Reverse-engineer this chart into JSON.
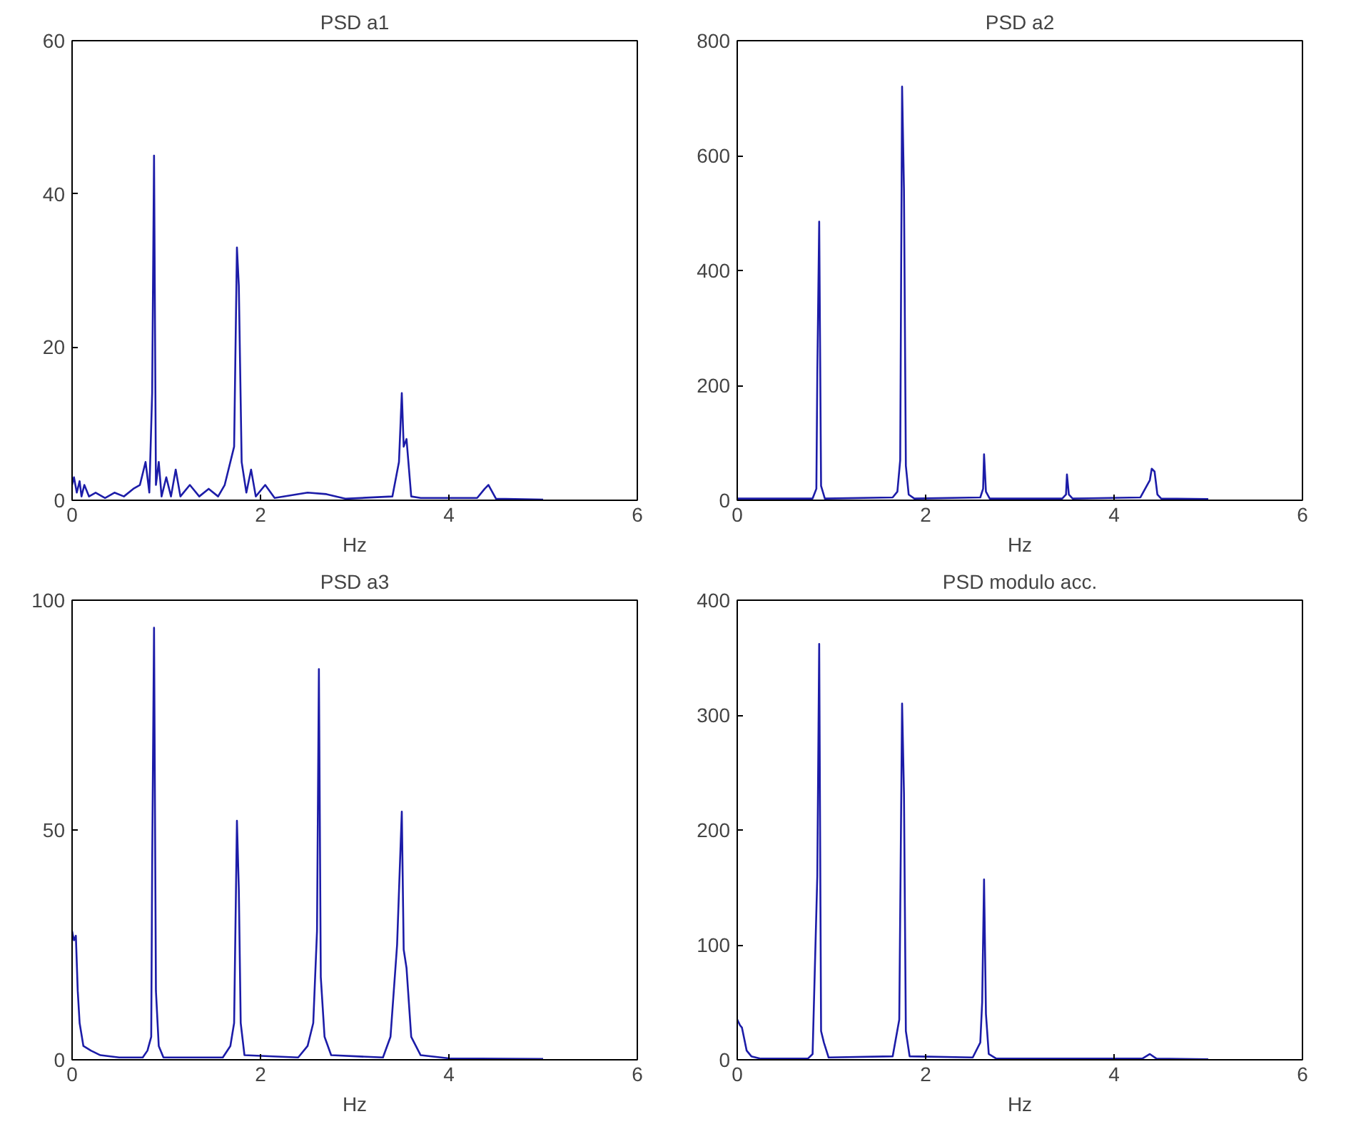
{
  "chart_data": [
    {
      "type": "line",
      "title": "PSD a1",
      "xlabel": "Hz",
      "color": "#1c1ca8",
      "xlim": [
        0,
        6
      ],
      "ylim": [
        0,
        60
      ],
      "xticks": [
        0,
        2,
        4,
        6
      ],
      "yticks": [
        0,
        20,
        40,
        60
      ],
      "x": [
        0,
        0.02,
        0.05,
        0.08,
        0.1,
        0.13,
        0.18,
        0.25,
        0.35,
        0.45,
        0.55,
        0.65,
        0.72,
        0.78,
        0.82,
        0.85,
        0.87,
        0.89,
        0.92,
        0.95,
        1.0,
        1.05,
        1.1,
        1.15,
        1.25,
        1.35,
        1.45,
        1.55,
        1.62,
        1.68,
        1.72,
        1.75,
        1.77,
        1.8,
        1.85,
        1.9,
        1.95,
        2.05,
        2.15,
        2.5,
        2.7,
        2.9,
        3.4,
        3.47,
        3.5,
        3.52,
        3.55,
        3.6,
        3.7,
        4.3,
        4.38,
        4.42,
        4.5,
        5.0
      ],
      "values": [
        2,
        3,
        1,
        2.5,
        0.5,
        2,
        0.5,
        1,
        0.3,
        1,
        0.5,
        1.5,
        2,
        5,
        1,
        14,
        45,
        2,
        5,
        0.5,
        3,
        0.5,
        4,
        0.5,
        2,
        0.5,
        1.5,
        0.5,
        2,
        5,
        7,
        33,
        28,
        5,
        1,
        4,
        0.5,
        2,
        0.3,
        1,
        0.8,
        0.2,
        0.5,
        5,
        14,
        7,
        8,
        0.5,
        0.3,
        0.3,
        1.5,
        2,
        0.2,
        0.1
      ]
    },
    {
      "type": "line",
      "title": "PSD a2",
      "xlabel": "Hz",
      "color": "#1c1ca8",
      "xlim": [
        0,
        6
      ],
      "ylim": [
        0,
        800
      ],
      "xticks": [
        0,
        2,
        4,
        6
      ],
      "yticks": [
        0,
        200,
        400,
        600,
        800
      ],
      "x": [
        0,
        0.8,
        0.84,
        0.85,
        0.87,
        0.89,
        0.93,
        1.65,
        1.7,
        1.73,
        1.75,
        1.77,
        1.79,
        1.82,
        1.88,
        2.58,
        2.61,
        2.62,
        2.64,
        2.68,
        3.45,
        3.49,
        3.5,
        3.52,
        3.56,
        4.28,
        4.33,
        4.38,
        4.4,
        4.43,
        4.46,
        4.5,
        5.0
      ],
      "values": [
        3,
        3,
        20,
        220,
        485,
        25,
        3,
        5,
        15,
        70,
        720,
        540,
        60,
        10,
        3,
        5,
        20,
        80,
        15,
        3,
        3,
        10,
        45,
        10,
        3,
        5,
        20,
        35,
        55,
        50,
        10,
        3,
        2
      ]
    },
    {
      "type": "line",
      "title": "PSD a3",
      "xlabel": "Hz",
      "color": "#1c1ca8",
      "xlim": [
        0,
        6
      ],
      "ylim": [
        0,
        100
      ],
      "xticks": [
        0,
        2,
        4,
        6
      ],
      "yticks": [
        0,
        50,
        100
      ],
      "x": [
        0,
        0.02,
        0.04,
        0.06,
        0.08,
        0.12,
        0.2,
        0.3,
        0.5,
        0.75,
        0.8,
        0.84,
        0.85,
        0.87,
        0.89,
        0.92,
        0.97,
        1.6,
        1.68,
        1.72,
        1.75,
        1.77,
        1.79,
        1.83,
        2.4,
        2.5,
        2.56,
        2.6,
        2.62,
        2.64,
        2.68,
        2.75,
        3.3,
        3.38,
        3.45,
        3.5,
        3.52,
        3.55,
        3.6,
        3.7,
        4.0,
        5.0
      ],
      "values": [
        28,
        26,
        27,
        15,
        8,
        3,
        2,
        1,
        0.5,
        0.5,
        2,
        5,
        42,
        94,
        15,
        3,
        0.5,
        0.5,
        3,
        8,
        52,
        37,
        8,
        1,
        0.5,
        3,
        8,
        28,
        85,
        18,
        5,
        1,
        0.5,
        5,
        25,
        54,
        24,
        20,
        5,
        1,
        0.3,
        0.2
      ]
    },
    {
      "type": "line",
      "title": "PSD modulo acc.",
      "xlabel": "Hz",
      "color": "#1c1ca8",
      "xlim": [
        0,
        6
      ],
      "ylim": [
        0,
        400
      ],
      "xticks": [
        0,
        2,
        4,
        6
      ],
      "yticks": [
        0,
        100,
        200,
        300,
        400
      ],
      "x": [
        0,
        0.03,
        0.05,
        0.07,
        0.1,
        0.15,
        0.25,
        0.75,
        0.8,
        0.85,
        0.87,
        0.89,
        0.92,
        0.97,
        1.65,
        1.72,
        1.75,
        1.77,
        1.79,
        1.83,
        2.5,
        2.58,
        2.6,
        2.62,
        2.64,
        2.67,
        2.75,
        4.3,
        4.38,
        4.45,
        5.0
      ],
      "values": [
        35,
        30,
        28,
        20,
        8,
        3,
        1,
        1,
        5,
        160,
        362,
        25,
        15,
        2,
        3,
        35,
        310,
        232,
        25,
        3,
        2,
        15,
        50,
        157,
        40,
        5,
        1,
        1,
        5,
        1,
        0.5
      ]
    }
  ]
}
